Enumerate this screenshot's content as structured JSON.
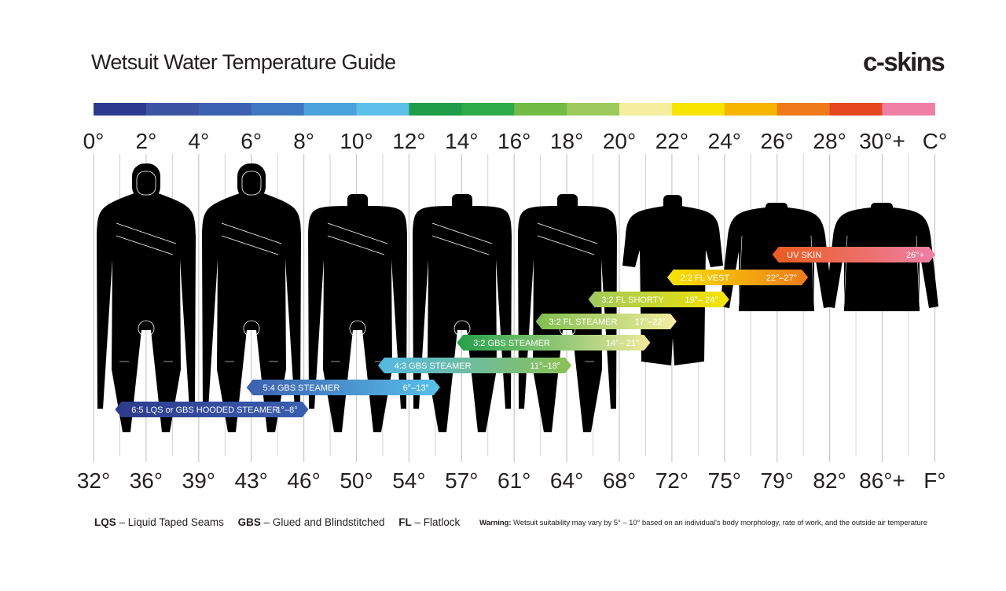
{
  "header": {
    "title": "Wetsuit Water Temperature Guide",
    "logo": "c-skins"
  },
  "chart_data": {
    "type": "range",
    "title": "Wetsuit Water Temperature Guide",
    "scale_colors": [
      "#2b3a8e",
      "#3d54a4",
      "#3b62b0",
      "#3f78c0",
      "#4aa3dc",
      "#5cc0ea",
      "#1f9d49",
      "#2eaa4a",
      "#72bb44",
      "#9ec95c",
      "#f4ee9e",
      "#f7e400",
      "#f7b500",
      "#ef7a1a",
      "#e5471e",
      "#ef7fa5"
    ],
    "celsius_ticks": [
      "0°",
      "2°",
      "4°",
      "6°",
      "8°",
      "10°",
      "12°",
      "14°",
      "16°",
      "18°",
      "20°",
      "22°",
      "24°",
      "26°",
      "28°",
      "30°+",
      "C°"
    ],
    "fahrenheit_ticks": [
      "32°",
      "36°",
      "39°",
      "43°",
      "46°",
      "50°",
      "54°",
      "57°",
      "61°",
      "64°",
      "68°",
      "72°",
      "75°",
      "79°",
      "82°",
      "86°+",
      "F°"
    ],
    "series": [
      {
        "name": "6:5 LQS or GBS HOODED STEAMER",
        "range_label": "1°–8°",
        "min_c": 1,
        "max_c": 8,
        "colors": [
          "#2d3a8c",
          "#3a5fb0"
        ]
      },
      {
        "name": "5:4 GBS STEAMER",
        "range_label": "6°–13°",
        "min_c": 6,
        "max_c": 13,
        "colors": [
          "#3d5fb0",
          "#58c1ea"
        ]
      },
      {
        "name": "4:3  GBS  STEAMER",
        "range_label": "11°–18°",
        "min_c": 11,
        "max_c": 18,
        "colors": [
          "#53b9e4",
          "#8cc152"
        ]
      },
      {
        "name": "3:2 GBS STEAMER",
        "range_label": "14°– 21°",
        "min_c": 14,
        "max_c": 21,
        "colors": [
          "#22a04a",
          "#f1ea9a"
        ]
      },
      {
        "name": "3:2 FL STEAMER",
        "range_label": "17°–22°",
        "min_c": 17,
        "max_c": 22,
        "colors": [
          "#7fbe4e",
          "#f4ee9e"
        ]
      },
      {
        "name": "3:2 FL SHORTY",
        "range_label": "19°– 24°",
        "min_c": 19,
        "max_c": 24,
        "colors": [
          "#9ec95c",
          "#f7e400"
        ]
      },
      {
        "name": "2:2 FL VEST",
        "range_label": "22°–27°",
        "min_c": 22,
        "max_c": 27,
        "colors": [
          "#f7e400",
          "#ef7a1a"
        ]
      },
      {
        "name": "UV SKIN",
        "range_label": "26°+",
        "min_c": 26,
        "max_c": 32,
        "colors": [
          "#ea5b1e",
          "#ef7fa5"
        ]
      }
    ],
    "suits": [
      "hooded-steamer",
      "hooded-steamer",
      "steamer",
      "steamer",
      "steamer",
      "shorty",
      "vest",
      "vest"
    ]
  },
  "legend": {
    "lqs_key": "LQS",
    "lqs_text": " – Liquid Taped Seams",
    "gbs_key": "GBS",
    "gbs_text": " – Glued and Blindstitched",
    "fl_key": "FL",
    "fl_text": " – Flatlock"
  },
  "warning": {
    "label": "Warning:",
    "text": " Wetsuit suitability may vary by 5° – 10° based on an individual's body morphology, rate of work, and the outside air temperature"
  }
}
